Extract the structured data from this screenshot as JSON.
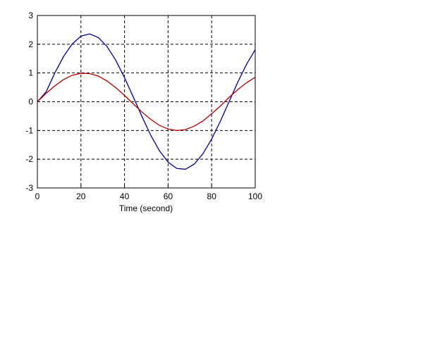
{
  "chart_data": {
    "type": "line",
    "x_label": "Time (second)",
    "x": [
      0,
      4,
      8,
      12,
      16,
      20,
      24,
      28,
      32,
      36,
      40,
      44,
      48,
      52,
      56,
      60,
      64,
      68,
      72,
      76,
      80,
      84,
      88,
      92,
      96,
      100
    ],
    "series": [
      {
        "color": "#00008b",
        "values": [
          0,
          0.34,
          1.0,
          1.57,
          2.01,
          2.28,
          2.36,
          2.23,
          1.92,
          1.44,
          0.84,
          0.17,
          -0.51,
          -1.16,
          -1.7,
          -2.1,
          -2.32,
          -2.35,
          -2.17,
          -1.81,
          -1.3,
          -0.68,
          0.0,
          0.68,
          1.3,
          1.81
        ]
      },
      {
        "color": "#b00000",
        "values": [
          0,
          0.29,
          0.55,
          0.77,
          0.92,
          0.99,
          0.98,
          0.89,
          0.72,
          0.49,
          0.22,
          -0.07,
          -0.36,
          -0.61,
          -0.82,
          -0.95,
          -1.0,
          -0.97,
          -0.85,
          -0.67,
          -0.42,
          -0.15,
          0.15,
          0.42,
          0.66,
          0.85
        ]
      }
    ],
    "xlim": [
      0,
      100
    ],
    "xticks": [
      0,
      20,
      40,
      60,
      80,
      100
    ],
    "ylim": [
      -3,
      3
    ],
    "yticks": [
      -3,
      -2,
      -1,
      0,
      1,
      2,
      3
    ],
    "grid": true
  }
}
